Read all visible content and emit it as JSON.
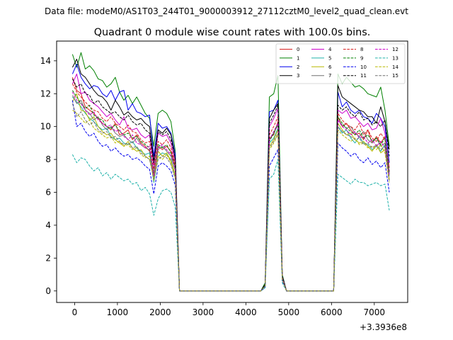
{
  "chart_data": {
    "type": "line",
    "suptitle": "Data file: modeM0/AS1T03_244T01_9000003912_27112cztM0_level2_quad_clean.evt",
    "title": "Quadrant 0 module wise count rates with 100.0s bins.",
    "xlabel": "",
    "ylabel": "",
    "offset_text": "+3.3936e8",
    "xlim": [
      -420,
      7780
    ],
    "ylim": [
      -0.7,
      15.2
    ],
    "xticks": [
      0,
      1000,
      2000,
      3000,
      4000,
      5000,
      6000,
      7000
    ],
    "yticks": [
      0,
      2,
      4,
      6,
      8,
      10,
      12,
      14
    ],
    "x": [
      -50,
      50,
      150,
      250,
      350,
      450,
      550,
      650,
      750,
      850,
      950,
      1050,
      1150,
      1250,
      1350,
      1450,
      1550,
      1650,
      1750,
      1850,
      1950,
      2050,
      2150,
      2250,
      2350,
      2450,
      4350,
      4450,
      4550,
      4650,
      4750,
      4850,
      4950,
      6050,
      6150,
      6250,
      6350,
      6450,
      6550,
      6650,
      6750,
      6850,
      6950,
      7050,
      7150,
      7250,
      7350
    ],
    "legend_location": "upper right",
    "series": [
      {
        "name": "0",
        "color": "#d62020",
        "dash": "solid",
        "values": [
          13.0,
          12.2,
          12.0,
          11.2,
          11.0,
          10.8,
          10.5,
          10.2,
          10.0,
          9.8,
          10.2,
          9.5,
          9.6,
          9.8,
          9.2,
          9.5,
          9.0,
          8.8,
          8.5,
          7.0,
          8.8,
          8.6,
          8.8,
          8.5,
          7.6,
          0.0,
          0.0,
          0.3,
          9.3,
          9.5,
          10.3,
          0.8,
          0.0,
          0.0,
          10.6,
          10.0,
          10.2,
          9.8,
          9.5,
          9.6,
          9.2,
          9.8,
          9.0,
          9.4,
          9.0,
          9.4,
          7.5
        ]
      },
      {
        "name": "1",
        "color": "#008000",
        "dash": "solid",
        "values": [
          14.4,
          13.6,
          14.5,
          13.5,
          13.7,
          13.4,
          12.9,
          12.8,
          12.4,
          12.6,
          13.0,
          12.1,
          11.6,
          11.9,
          11.4,
          11.8,
          11.3,
          10.8,
          10.5,
          8.8,
          10.8,
          11.0,
          10.8,
          10.3,
          8.5,
          0.0,
          0.0,
          0.5,
          11.8,
          12.0,
          13.1,
          1.0,
          0.0,
          0.0,
          13.2,
          12.6,
          13.0,
          12.7,
          12.4,
          12.5,
          12.3,
          12.0,
          11.9,
          11.8,
          12.4,
          11.0,
          8.8
        ]
      },
      {
        "name": "2",
        "color": "#0000ee",
        "dash": "solid",
        "values": [
          13.2,
          13.8,
          13.0,
          12.6,
          12.3,
          12.5,
          12.4,
          12.0,
          11.8,
          12.2,
          11.6,
          12.1,
          12.2,
          11.0,
          11.4,
          10.9,
          10.8,
          10.6,
          10.7,
          8.2,
          10.2,
          9.9,
          10.0,
          9.6,
          8.3,
          0.0,
          0.0,
          0.4,
          10.9,
          11.0,
          11.6,
          0.9,
          0.0,
          0.0,
          12.1,
          11.2,
          11.5,
          11.0,
          10.8,
          11.0,
          10.6,
          10.5,
          10.2,
          10.8,
          10.5,
          10.0,
          7.8
        ]
      },
      {
        "name": "3",
        "color": "#000000",
        "dash": "solid",
        "values": [
          13.6,
          14.1,
          13.2,
          13.0,
          12.6,
          12.2,
          11.9,
          11.8,
          11.5,
          11.0,
          11.6,
          11.2,
          10.7,
          10.9,
          10.6,
          10.4,
          10.5,
          10.2,
          10.0,
          7.9,
          9.8,
          9.6,
          9.9,
          9.5,
          8.0,
          0.0,
          0.0,
          0.4,
          10.5,
          11.0,
          11.4,
          0.9,
          0.0,
          0.0,
          12.5,
          11.8,
          11.6,
          11.4,
          11.2,
          11.0,
          10.9,
          10.6,
          10.6,
          10.2,
          11.2,
          10.3,
          8.6
        ]
      },
      {
        "name": "4",
        "color": "#cc00cc",
        "dash": "solid",
        "values": [
          12.6,
          13.2,
          12.0,
          12.1,
          11.6,
          11.4,
          11.2,
          10.9,
          10.6,
          10.8,
          10.4,
          10.1,
          10.6,
          9.9,
          9.8,
          9.9,
          9.5,
          9.3,
          9.5,
          7.6,
          9.6,
          9.4,
          9.5,
          9.0,
          7.8,
          0.0,
          0.0,
          0.3,
          10.0,
          10.5,
          11.1,
          0.8,
          0.0,
          0.0,
          11.0,
          10.8,
          11.0,
          10.5,
          10.6,
          10.3,
          10.0,
          10.2,
          9.8,
          9.9,
          10.5,
          9.6,
          7.2
        ]
      },
      {
        "name": "5",
        "color": "#20b2aa",
        "dash": "solid",
        "values": [
          11.8,
          11.5,
          11.2,
          10.8,
          10.5,
          10.3,
          10.0,
          9.8,
          9.9,
          9.4,
          9.2,
          9.3,
          9.0,
          8.9,
          9.1,
          8.7,
          8.5,
          8.3,
          8.4,
          6.6,
          8.2,
          8.4,
          8.3,
          8.0,
          7.0,
          0.0,
          0.0,
          0.3,
          9.0,
          9.3,
          9.9,
          0.7,
          0.0,
          0.0,
          10.0,
          9.6,
          9.8,
          9.3,
          9.0,
          9.4,
          9.0,
          8.9,
          8.6,
          8.8,
          8.5,
          8.9,
          7.0
        ]
      },
      {
        "name": "6",
        "color": "#b8b800",
        "dash": "solid",
        "values": [
          11.5,
          12.0,
          11.0,
          10.9,
          10.4,
          10.6,
          10.0,
          9.7,
          9.5,
          9.6,
          9.2,
          9.0,
          8.8,
          9.1,
          8.7,
          8.5,
          8.6,
          8.2,
          8.0,
          6.9,
          8.5,
          8.2,
          8.4,
          7.9,
          7.1,
          0.0,
          0.0,
          0.3,
          8.8,
          9.2,
          9.8,
          0.7,
          0.0,
          0.0,
          10.2,
          9.8,
          9.5,
          9.6,
          9.2,
          9.0,
          9.1,
          8.8,
          8.5,
          8.9,
          8.4,
          8.6,
          6.8
        ]
      },
      {
        "name": "7",
        "color": "#707070",
        "dash": "solid",
        "values": [
          11.9,
          11.4,
          11.6,
          11.0,
          10.8,
          10.4,
          10.6,
          10.1,
          9.8,
          10.0,
          9.6,
          9.4,
          9.5,
          9.2,
          9.0,
          9.3,
          8.9,
          8.7,
          8.6,
          7.2,
          8.6,
          8.8,
          8.5,
          8.2,
          7.3,
          0.0,
          0.0,
          0.3,
          9.2,
          9.6,
          10.1,
          0.7,
          0.0,
          0.0,
          10.4,
          10.1,
          9.9,
          10.0,
          9.6,
          9.4,
          9.7,
          9.2,
          9.0,
          9.3,
          8.8,
          9.0,
          7.1
        ]
      },
      {
        "name": "8",
        "color": "#d62020",
        "dash": "dashed",
        "values": [
          12.6,
          12.1,
          11.8,
          11.5,
          11.2,
          11.0,
          10.9,
          10.5,
          10.3,
          10.6,
          10.2,
          10.0,
          9.8,
          10.1,
          9.7,
          9.6,
          9.2,
          9.0,
          9.1,
          7.4,
          9.1,
          8.9,
          9.2,
          8.7,
          7.7,
          0.0,
          0.0,
          0.3,
          9.5,
          10.0,
          10.6,
          0.8,
          0.0,
          0.0,
          10.8,
          10.4,
          10.1,
          10.0,
          9.8,
          10.2,
          9.5,
          9.8,
          9.3,
          9.1,
          9.6,
          9.2,
          7.3
        ]
      },
      {
        "name": "9",
        "color": "#008000",
        "dash": "dashed",
        "values": [
          12.2,
          11.8,
          11.4,
          11.1,
          11.3,
          10.7,
          10.5,
          10.4,
          10.0,
          9.9,
          10.1,
          9.7,
          9.5,
          9.6,
          9.3,
          9.4,
          9.1,
          8.9,
          8.7,
          7.1,
          8.9,
          8.7,
          8.9,
          8.4,
          7.5,
          0.0,
          0.0,
          0.3,
          9.1,
          9.6,
          10.2,
          0.8,
          0.0,
          0.0,
          10.6,
          10.2,
          9.9,
          9.7,
          9.5,
          9.8,
          9.3,
          9.5,
          9.1,
          9.3,
          8.9,
          9.3,
          7.2
        ]
      },
      {
        "name": "10",
        "color": "#0000ee",
        "dash": "dashed",
        "values": [
          11.6,
          10.0,
          10.2,
          9.7,
          9.4,
          9.6,
          9.1,
          8.8,
          8.9,
          8.5,
          8.7,
          8.4,
          8.2,
          8.3,
          8.0,
          8.1,
          7.9,
          7.6,
          7.4,
          5.9,
          7.6,
          7.8,
          7.6,
          7.3,
          6.4,
          0.0,
          0.0,
          0.2,
          7.6,
          8.1,
          8.6,
          0.6,
          0.0,
          0.0,
          9.0,
          8.7,
          8.5,
          8.2,
          8.4,
          8.0,
          7.8,
          8.1,
          7.7,
          7.9,
          7.5,
          7.8,
          6.0
        ]
      },
      {
        "name": "11",
        "color": "#000000",
        "dash": "dashed",
        "values": [
          12.9,
          12.4,
          12.6,
          12.0,
          11.9,
          11.4,
          11.6,
          11.2,
          11.0,
          10.8,
          10.9,
          10.6,
          10.4,
          10.7,
          10.3,
          10.1,
          10.2,
          9.8,
          9.6,
          7.8,
          9.7,
          9.5,
          9.7,
          9.2,
          8.1,
          0.0,
          0.0,
          0.4,
          10.2,
          10.7,
          11.3,
          0.9,
          0.0,
          0.0,
          11.3,
          11.0,
          11.2,
          10.8,
          10.6,
          10.9,
          10.4,
          10.5,
          10.1,
          10.3,
          10.0,
          10.4,
          8.2
        ]
      },
      {
        "name": "12",
        "color": "#cc00cc",
        "dash": "dashed",
        "values": [
          12.1,
          11.6,
          11.4,
          11.0,
          10.7,
          10.9,
          10.4,
          10.2,
          10.0,
          10.1,
          9.7,
          9.8,
          9.4,
          9.2,
          9.5,
          9.0,
          8.9,
          8.7,
          8.8,
          7.0,
          8.7,
          8.9,
          8.6,
          8.3,
          7.4,
          0.0,
          0.0,
          0.3,
          9.2,
          9.7,
          10.2,
          0.8,
          0.0,
          0.0,
          10.4,
          10.0,
          9.8,
          9.5,
          9.7,
          9.3,
          9.4,
          9.0,
          9.2,
          8.8,
          9.1,
          8.7,
          7.0
        ]
      },
      {
        "name": "13",
        "color": "#20b2aa",
        "dash": "dashed",
        "values": [
          8.3,
          7.8,
          8.1,
          8.0,
          7.6,
          7.3,
          7.5,
          7.0,
          7.2,
          6.8,
          7.1,
          6.9,
          6.7,
          6.8,
          6.5,
          6.6,
          6.1,
          6.3,
          5.9,
          4.6,
          5.6,
          6.1,
          6.2,
          6.0,
          5.1,
          0.0,
          0.0,
          0.2,
          6.8,
          7.1,
          8.0,
          0.5,
          0.0,
          0.0,
          7.1,
          6.9,
          6.7,
          6.5,
          6.8,
          6.6,
          6.6,
          6.4,
          6.5,
          6.6,
          6.4,
          6.5,
          4.9
        ]
      },
      {
        "name": "14",
        "color": "#b8b800",
        "dash": "dashed",
        "values": [
          11.0,
          10.8,
          10.5,
          10.2,
          10.4,
          9.9,
          9.7,
          9.5,
          9.3,
          9.4,
          9.0,
          9.1,
          8.8,
          8.9,
          8.6,
          8.7,
          8.3,
          8.1,
          8.2,
          6.7,
          8.2,
          8.0,
          8.3,
          7.8,
          6.9,
          0.0,
          0.0,
          0.3,
          8.6,
          9.0,
          9.5,
          0.7,
          0.0,
          0.0,
          9.8,
          9.5,
          9.3,
          9.1,
          9.3,
          8.9,
          9.0,
          8.7,
          8.8,
          8.6,
          8.9,
          8.4,
          6.6
        ]
      },
      {
        "name": "15",
        "color": "#707070",
        "dash": "dashed",
        "values": [
          11.4,
          10.6,
          10.9,
          10.4,
          10.1,
          10.3,
          9.8,
          9.6,
          9.7,
          9.3,
          9.4,
          9.1,
          8.9,
          9.0,
          8.7,
          8.8,
          8.4,
          8.2,
          8.0,
          6.8,
          8.0,
          8.2,
          8.1,
          7.7,
          6.8,
          0.0,
          0.0,
          0.3,
          8.7,
          9.1,
          9.6,
          0.7,
          0.0,
          0.0,
          10.0,
          9.7,
          9.5,
          9.4,
          9.2,
          9.3,
          8.9,
          9.0,
          8.7,
          8.9,
          8.6,
          8.8,
          6.7
        ]
      }
    ]
  }
}
